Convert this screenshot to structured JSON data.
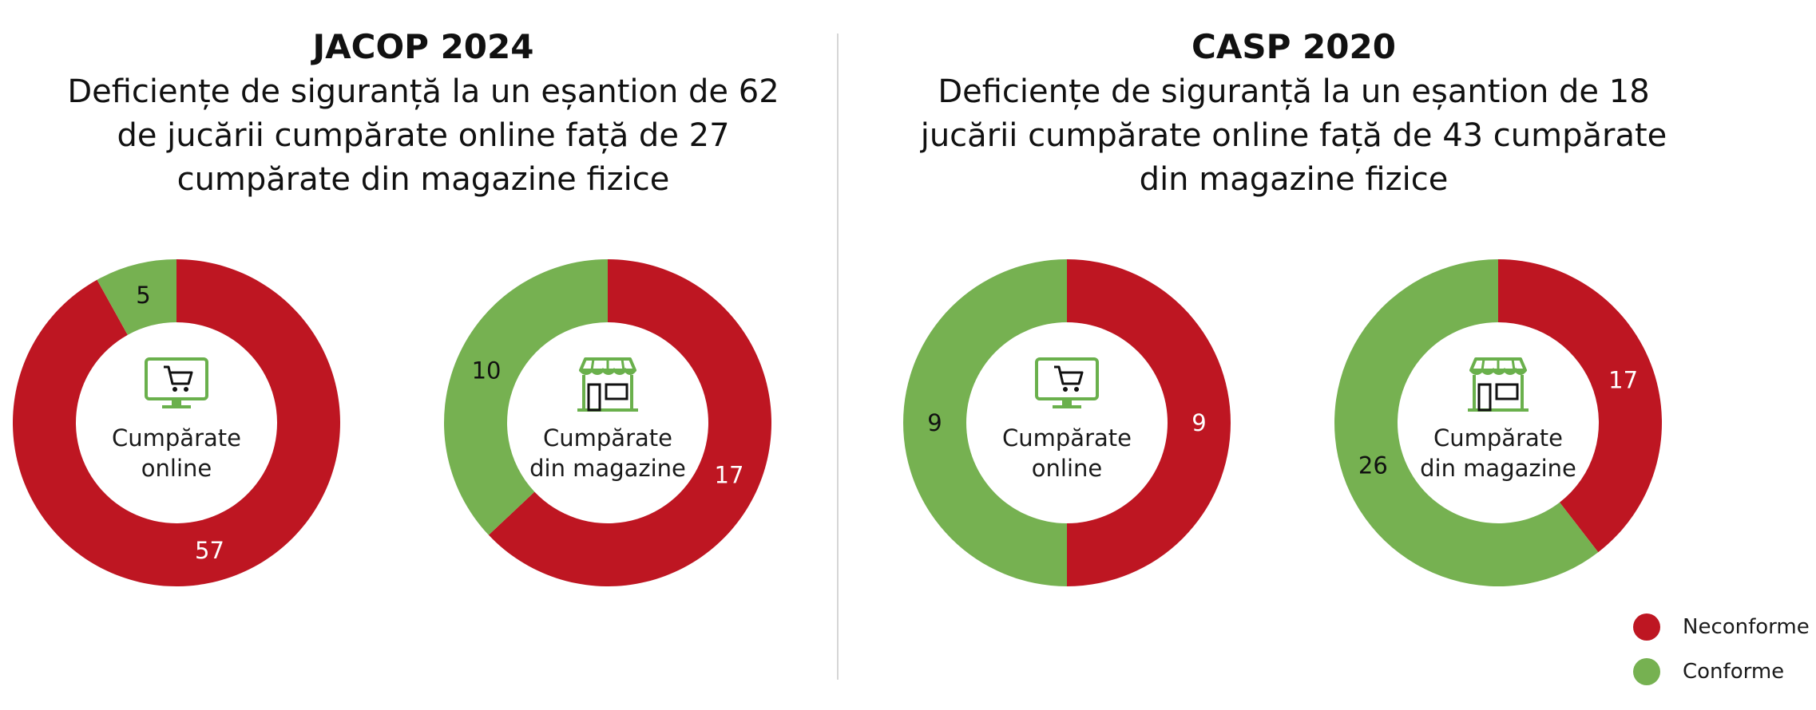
{
  "colors": {
    "neconforme": "#be1622",
    "conforme": "#76b151",
    "icon": "#6ab04c"
  },
  "legend": {
    "neconforme": "Neconforme",
    "conforme": "Conforme"
  },
  "panels": [
    {
      "title": "JACOP 2024",
      "subtitle": "Deficiențe de siguranță la un eșantion de 62 de jucării cumpărate online față de 27 cumpărate din magazine fizice"
    },
    {
      "title": "CASP 2020",
      "subtitle": "Deficiențe de siguranță la un eșantion de 18 jucării cumpărate online față de 43 cumpărate din magazine fizice"
    }
  ],
  "chart_data": [
    {
      "type": "pie",
      "title": "JACOP 2024 – Cumpărate online",
      "center_label": [
        "Cumpărate",
        "online"
      ],
      "icon": "computer-cart-icon",
      "slices": [
        {
          "name": "Neconforme",
          "value": 57
        },
        {
          "name": "Conforme",
          "value": 5
        }
      ]
    },
    {
      "type": "pie",
      "title": "JACOP 2024 – Cumpărate din magazine",
      "center_label": [
        "Cumpărate",
        "din magazine"
      ],
      "icon": "store-icon",
      "slices": [
        {
          "name": "Neconforme",
          "value": 17
        },
        {
          "name": "Conforme",
          "value": 10
        }
      ]
    },
    {
      "type": "pie",
      "title": "CASP 2020 – Cumpărate online",
      "center_label": [
        "Cumpărate",
        "online"
      ],
      "icon": "computer-cart-icon",
      "slices": [
        {
          "name": "Neconforme",
          "value": 9
        },
        {
          "name": "Conforme",
          "value": 9
        }
      ]
    },
    {
      "type": "pie",
      "title": "CASP 2020 – Cumpărate din magazine",
      "center_label": [
        "Cumpărate",
        "din magazine"
      ],
      "icon": "store-icon",
      "slices": [
        {
          "name": "Neconforme",
          "value": 17
        },
        {
          "name": "Conforme",
          "value": 26
        }
      ]
    }
  ]
}
